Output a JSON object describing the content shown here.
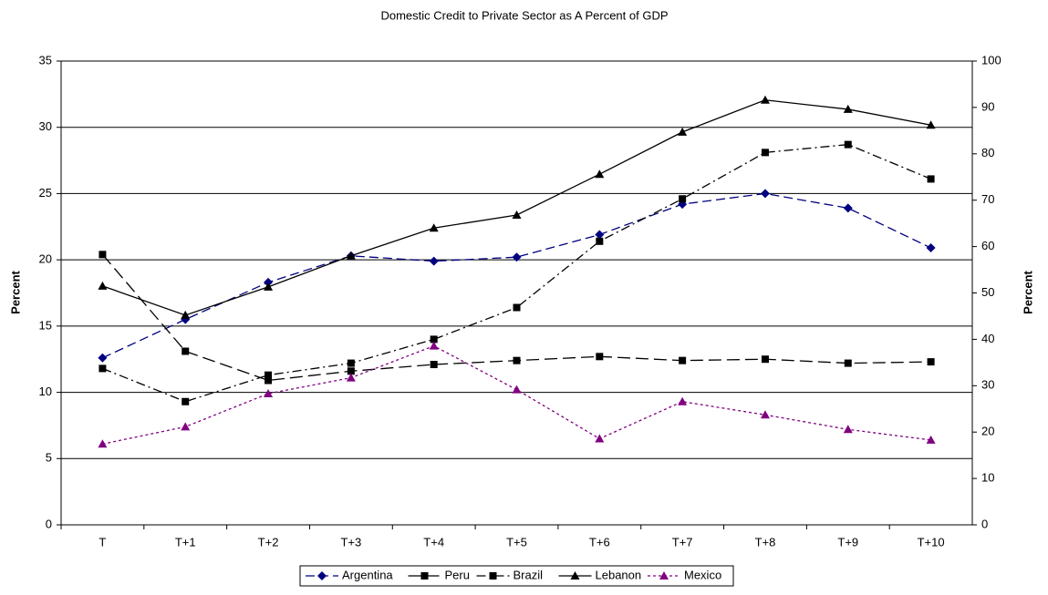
{
  "chart_data": {
    "type": "line",
    "title": "Domestic Credit to Private Sector as A Percent of GDP",
    "y_label": "Percent",
    "y2_label": "Percent",
    "categories": [
      "T",
      "T+1",
      "T+2",
      "T+3",
      "T+4",
      "T+5",
      "T+6",
      "T+7",
      "T+8",
      "T+9",
      "T+10"
    ],
    "ylim": [
      0,
      35
    ],
    "yticks": [
      0,
      5,
      10,
      15,
      20,
      25,
      30,
      35
    ],
    "y2lim": [
      0,
      100
    ],
    "y2ticks": [
      0,
      10,
      20,
      30,
      40,
      50,
      60,
      70,
      80,
      90,
      100
    ],
    "grid": true,
    "legend": "bottom",
    "series": [
      {
        "name": "Argentina",
        "color": "#000080",
        "dash": "10,5",
        "marker": "diamond",
        "values": [
          12.6,
          15.5,
          18.3,
          20.3,
          19.9,
          20.2,
          21.9,
          24.2,
          25.0,
          23.9,
          20.9
        ]
      },
      {
        "name": "Peru",
        "color": "#000000",
        "dash": "14,6",
        "marker": "square",
        "values": [
          20.4,
          13.1,
          10.9,
          11.6,
          12.1,
          12.4,
          12.7,
          12.4,
          12.5,
          12.2,
          12.3
        ]
      },
      {
        "name": "Brazil",
        "color": "#000000",
        "dash": "10,4,2,4",
        "marker": "square",
        "values": [
          11.8,
          9.3,
          11.3,
          12.2,
          14.0,
          16.4,
          21.4,
          24.6,
          28.1,
          28.7,
          26.1
        ]
      },
      {
        "name": "Lebanon",
        "color": "#000000",
        "dash": "none",
        "marker": "triangle",
        "axis": "y2",
        "values": [
          51.5,
          45.2,
          51.3,
          58.0,
          64.0,
          66.8,
          75.6,
          84.7,
          91.6,
          89.6,
          86.2
        ]
      },
      {
        "name": "Mexico",
        "color": "#800080",
        "dash": "3,3",
        "marker": "triangle",
        "values": [
          6.1,
          7.4,
          9.9,
          11.1,
          13.5,
          10.2,
          6.5,
          9.3,
          8.3,
          7.2,
          6.4
        ]
      }
    ]
  }
}
